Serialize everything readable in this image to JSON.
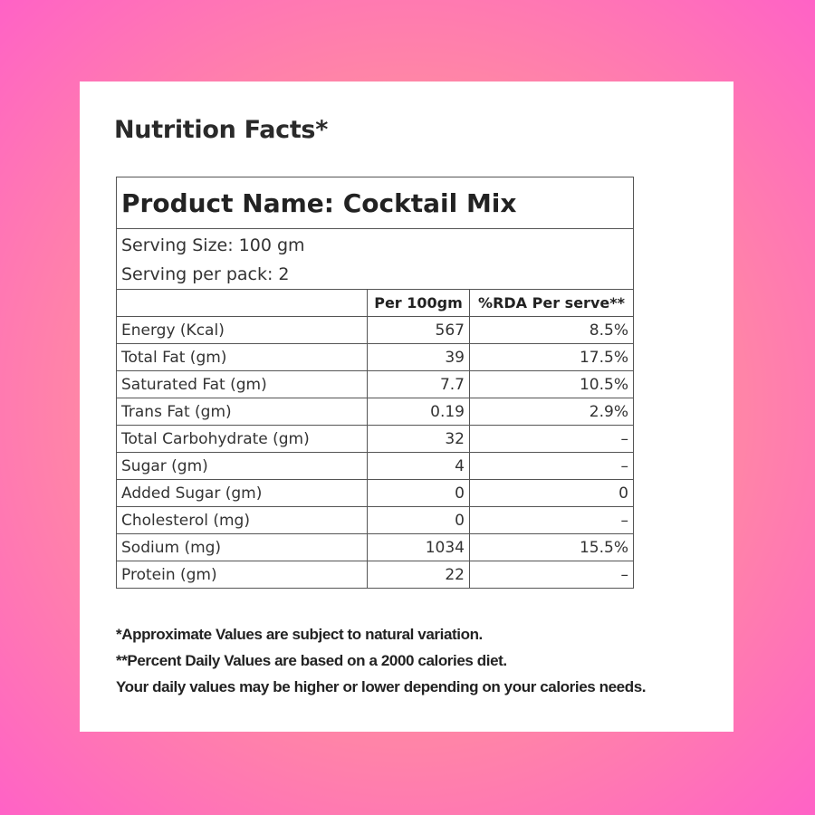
{
  "title": "Nutrition Facts*",
  "table": {
    "product": "Product Name: Cocktail Mix",
    "serving_size": "Serving Size: 100 gm",
    "servings_per_pack": "Serving per pack: 2",
    "header": [
      "Per 100gm",
      "%RDA Per serve**"
    ],
    "rows": [
      [
        "Energy (Kcal)",
        "567",
        "8.5%"
      ],
      [
        "Total Fat (gm)",
        "39",
        "17.5%"
      ],
      [
        "Saturated Fat (gm)",
        "7.7",
        "10.5%"
      ],
      [
        "Trans Fat (gm)",
        "0.19",
        "2.9%"
      ],
      [
        "Total Carbohydrate (gm)",
        "32",
        "–"
      ],
      [
        "Sugar (gm)",
        "4",
        "–"
      ],
      [
        "Added Sugar (gm)",
        "0",
        "0"
      ],
      [
        "Cholesterol (mg)",
        "0",
        "–"
      ],
      [
        "Sodium (mg)",
        "1034",
        "15.5%"
      ],
      [
        "Protein (gm)",
        "22",
        "–"
      ]
    ]
  },
  "footnotes": [
    "*Approximate Values are subject to natural variation.",
    "**Percent Daily Values are based on a 2000 calories diet.",
    "Your daily values may be higher or lower depending on your calories needs."
  ]
}
